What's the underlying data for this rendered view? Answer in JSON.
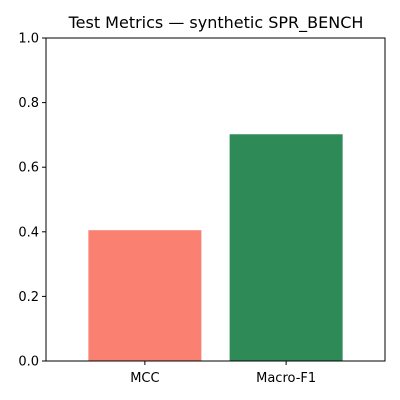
{
  "chart_data": {
    "type": "bar",
    "title": "Test Metrics — synthetic SPR_BENCH",
    "xlabel": "",
    "ylabel": "",
    "categories": [
      "MCC",
      "Macro-F1"
    ],
    "values": [
      0.405,
      0.702
    ],
    "colors": [
      "#fa8072",
      "#2e8b57"
    ],
    "ylim": [
      0,
      1.0
    ],
    "yticks": [
      "0.0",
      "0.2",
      "0.4",
      "0.6",
      "0.8",
      "1.0"
    ],
    "grid": false,
    "legend": "none"
  }
}
